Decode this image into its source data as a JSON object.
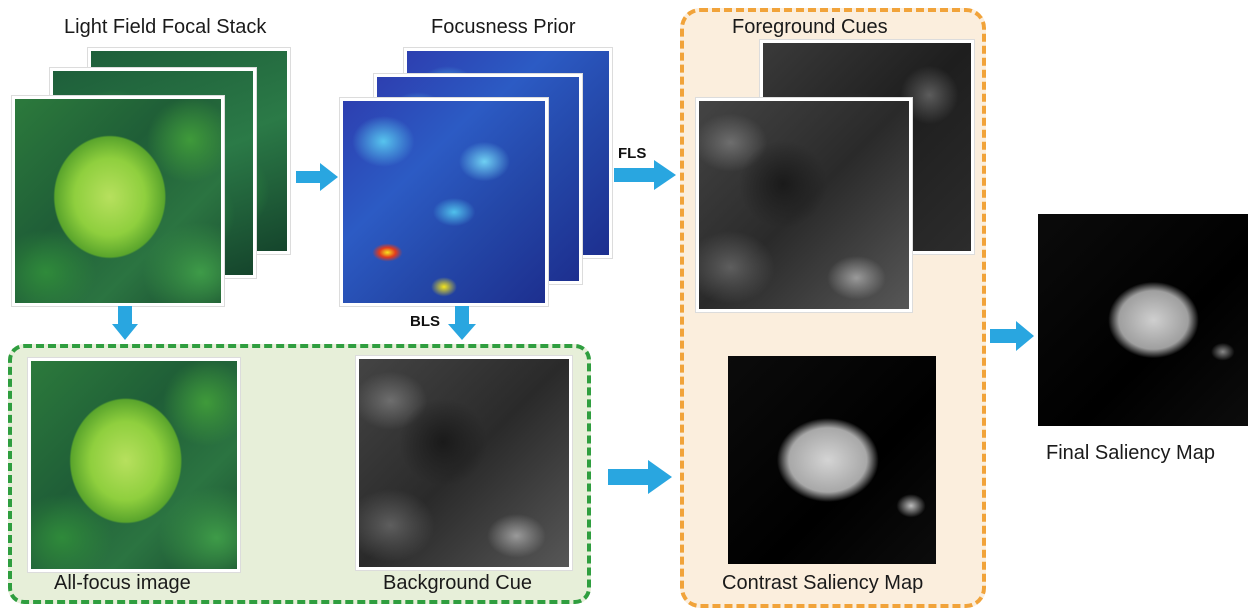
{
  "labels": {
    "focal_stack": "Light Field Focal Stack",
    "focusness_prior": "Focusness Prior",
    "foreground_cues": "Foreground Cues",
    "all_focus": "All-focus image",
    "background_cue": "Background Cue",
    "contrast_saliency": "Contrast Saliency Map",
    "final_saliency": "Final Saliency Map"
  },
  "arrows": {
    "fls": "FLS",
    "bls": "BLS"
  },
  "colors": {
    "arrow": "#29a6e0",
    "green_group_border": "#2f9e3f",
    "green_group_fill": "#e7efd9",
    "orange_group_border": "#f1a33a",
    "orange_group_fill": "#fbeedd"
  }
}
